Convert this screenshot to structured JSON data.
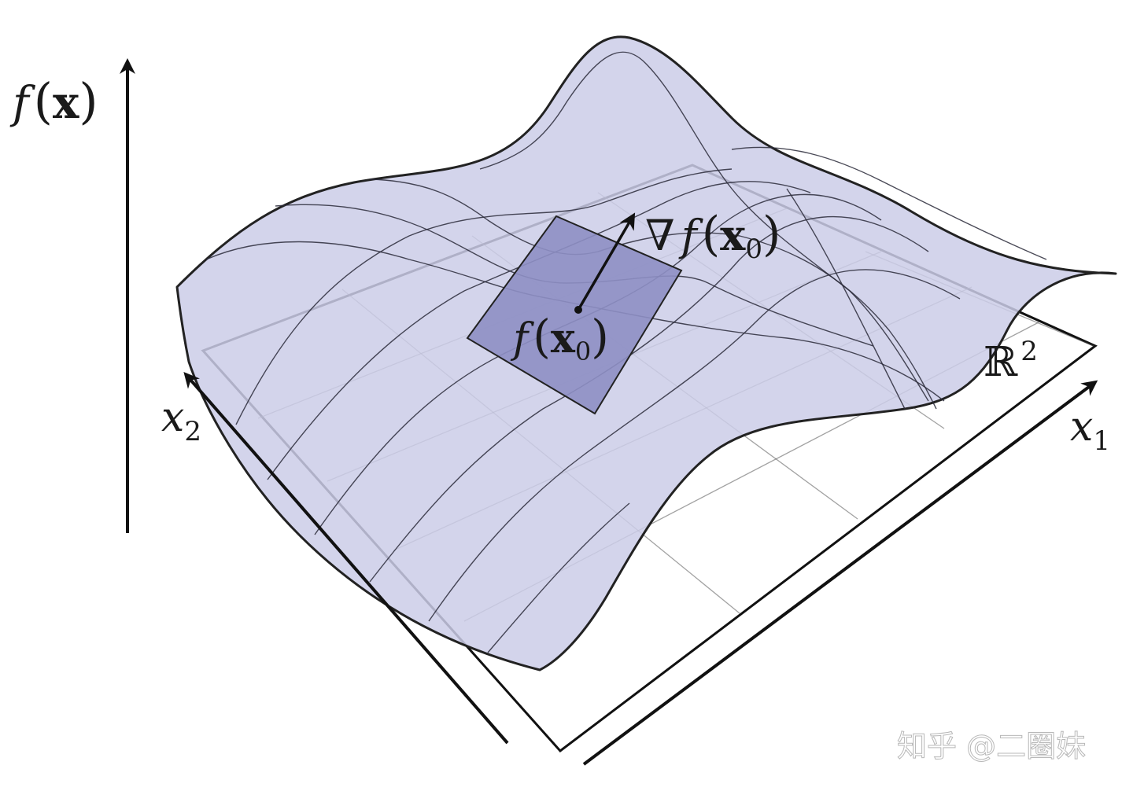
{
  "labels": {
    "f_of_x": {
      "f": "f",
      "open": "(",
      "x": "x",
      "close": ")"
    },
    "gradient": {
      "nabla": "∇",
      "f": "f",
      "open": "(",
      "x": "x",
      "sub": "0",
      "close": ")"
    },
    "f_of_x0": {
      "f": "f",
      "open": "(",
      "x": "x",
      "sub": "0",
      "close": ")"
    },
    "plane": {
      "base": "ℝ",
      "sup": "2"
    },
    "x1": {
      "base": "x",
      "sub": "1"
    },
    "x2": {
      "base": "x",
      "sub": "2"
    }
  },
  "watermark": "知乎 @二圈妹",
  "colors": {
    "surface": "#cbcde8",
    "tangent_plane": "#8e8fc4",
    "ink": "#111111"
  }
}
